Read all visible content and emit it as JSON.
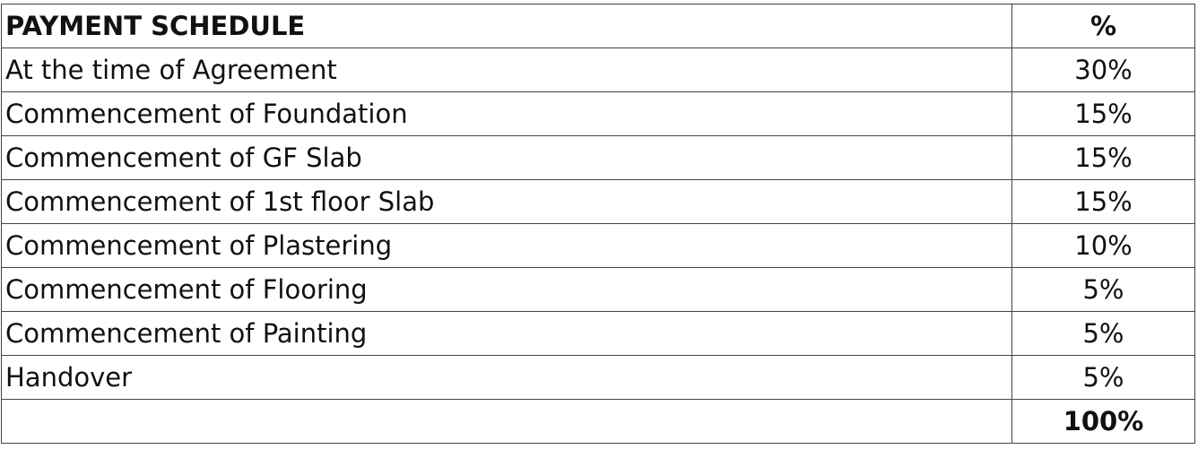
{
  "table": {
    "header": {
      "label": "PAYMENT SCHEDULE",
      "percent": "%"
    },
    "rows": [
      {
        "label": "At the time of Agreement",
        "percent": "30%"
      },
      {
        "label": "Commencement of Foundation",
        "percent": "15%"
      },
      {
        "label": "Commencement of GF Slab",
        "percent": "15%"
      },
      {
        "label": "Commencement of 1st floor Slab",
        "percent": "15%"
      },
      {
        "label": "Commencement of Plastering",
        "percent": "10%"
      },
      {
        "label": "Commencement of Flooring",
        "percent": "5%"
      },
      {
        "label": "Commencement of Painting",
        "percent": "5%"
      },
      {
        "label": "Handover",
        "percent": "5%"
      }
    ],
    "total": {
      "label": "",
      "percent": "100%"
    }
  }
}
